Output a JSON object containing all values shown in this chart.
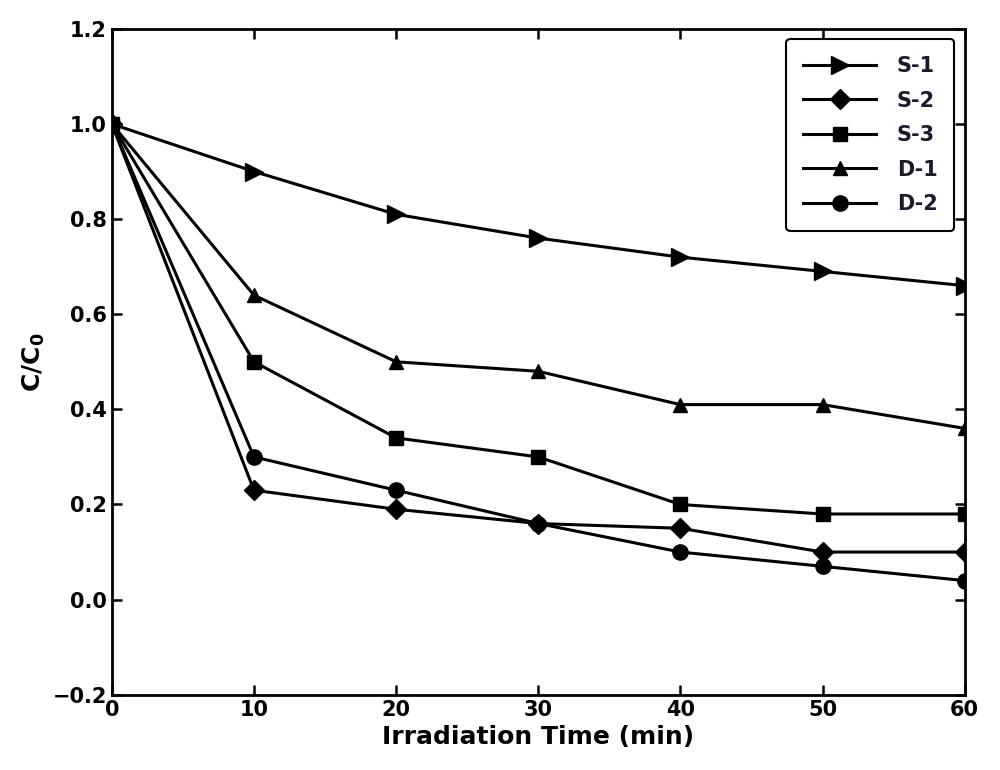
{
  "x": [
    0,
    10,
    20,
    30,
    40,
    50,
    60
  ],
  "S1": [
    1.0,
    0.9,
    0.81,
    0.76,
    0.72,
    0.69,
    0.66
  ],
  "S2": [
    1.0,
    0.23,
    0.19,
    0.16,
    0.15,
    0.1,
    0.1
  ],
  "S3": [
    1.0,
    0.5,
    0.34,
    0.3,
    0.2,
    0.18,
    0.18
  ],
  "D1": [
    1.0,
    0.64,
    0.5,
    0.48,
    0.41,
    0.41,
    0.36
  ],
  "D2": [
    1.0,
    0.3,
    0.23,
    0.16,
    0.1,
    0.07,
    0.04
  ],
  "labels": [
    "S-1",
    "S-2",
    "S-3",
    "D-1",
    "D-2"
  ],
  "xlabel": "Irradiation Time (min)",
  "ylabel": "C/C$_0$",
  "xlim": [
    0,
    60
  ],
  "ylim": [
    -0.2,
    1.2
  ],
  "yticks": [
    -0.2,
    0.0,
    0.2,
    0.4,
    0.6,
    0.8,
    1.0,
    1.2
  ],
  "xticks": [
    0,
    10,
    20,
    30,
    40,
    50,
    60
  ],
  "linecolor": "#000000",
  "linewidth": 2.2,
  "markersize_large": 13,
  "markersize_small": 10,
  "legend_fontsize": 15,
  "axis_label_fontsize": 18,
  "tick_fontsize": 15,
  "legend_text_color": "#1a1a2e"
}
